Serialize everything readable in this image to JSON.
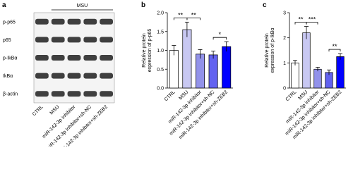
{
  "blot": {
    "panel_label": "a",
    "bracket_label": "MSU",
    "rows": [
      "p-p65",
      "p65",
      "p-IkBα",
      "IkBα",
      "β-actin"
    ],
    "lanes": [
      "CTRL",
      "MSU",
      "miR-142-3p inhibitor",
      "miR-142-3p inhibitor+sh-NC",
      "miR-142-3p inhibitor+sh-ZEB2"
    ]
  },
  "chart_data": [
    {
      "type": "bar",
      "panel_label": "b",
      "y_label": [
        "Relative protein",
        "expression of p-p65"
      ],
      "categories": [
        "CTRL",
        "MSU",
        "miR-142-3p inhibitor",
        "miR-142-3p inhibitor+sh-NC",
        "miR-142-3p inhibitor+sh-ZEB2"
      ],
      "values": [
        1.0,
        1.55,
        0.9,
        0.88,
        1.1
      ],
      "errors": [
        0.13,
        0.2,
        0.12,
        0.1,
        0.13
      ],
      "colors": [
        "#ffffff",
        "#c8c8f2",
        "#9292ea",
        "#6262f0",
        "#0000ff"
      ],
      "ylim": [
        0,
        2
      ],
      "yticks": [
        {
          "value": 0,
          "label": "0.0"
        },
        0.5,
        {
          "value": 1,
          "label": "1.0"
        },
        1.5,
        {
          "value": 2,
          "label": "2.0"
        }
      ],
      "significance": [
        {
          "between": [
            0,
            1
          ],
          "label": "**"
        },
        {
          "between": [
            1,
            2
          ],
          "label": "**"
        },
        {
          "between": [
            3,
            4
          ],
          "label": "*"
        }
      ]
    },
    {
      "type": "bar",
      "panel_label": "c",
      "y_label": [
        "Relative protein",
        "expression of p-IkBα"
      ],
      "categories": [
        "CTRL",
        "MSU",
        "miR-142-3p inhibitor",
        "miR-142-3p inhibitor+sh-NC",
        "miR-142-3p inhibitor+sh-ZEB2"
      ],
      "values": [
        1.0,
        2.2,
        0.75,
        0.62,
        1.25
      ],
      "errors": [
        0.1,
        0.25,
        0.08,
        0.1,
        0.12
      ],
      "colors": [
        "#ffffff",
        "#c8c8f2",
        "#9292ea",
        "#6262f0",
        "#0000ff"
      ],
      "ylim": [
        0,
        3
      ],
      "yticks": [
        0,
        1,
        2,
        3
      ],
      "significance": [
        {
          "between": [
            0,
            1
          ],
          "label": "**"
        },
        {
          "between": [
            1,
            2
          ],
          "label": "***"
        },
        {
          "between": [
            3,
            4
          ],
          "label": "**"
        }
      ]
    }
  ]
}
